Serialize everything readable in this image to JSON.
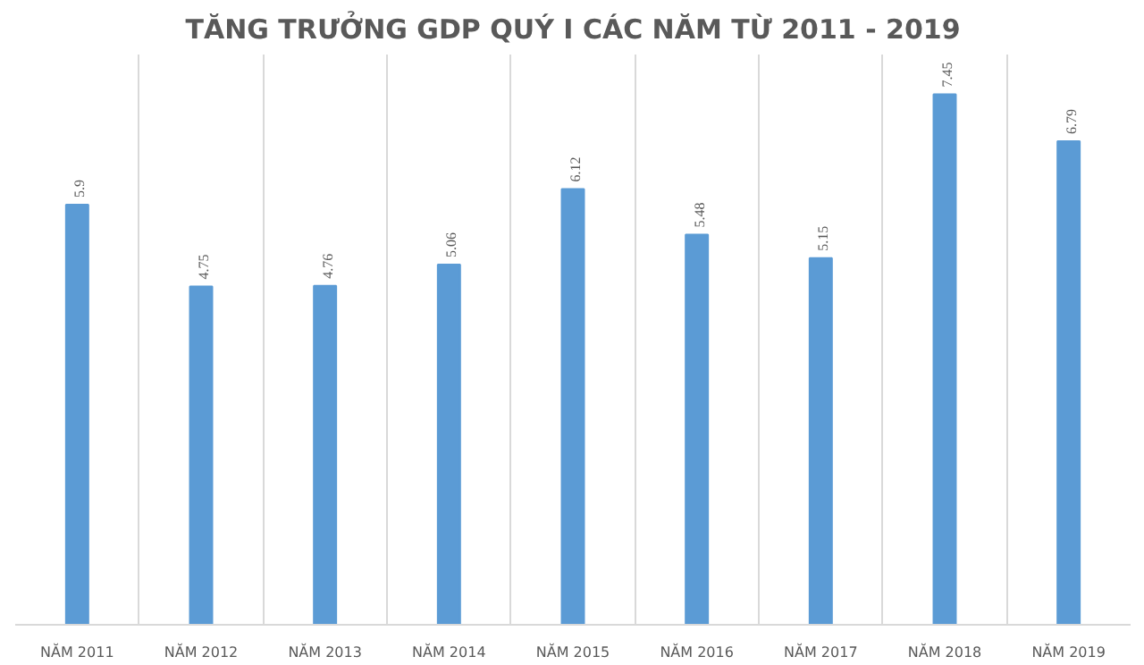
{
  "chart_data": {
    "type": "bar",
    "title": "TĂNG TRƯỞNG GDP QUÝ I CÁC NĂM TỪ 2011 - 2019",
    "categories": [
      "NĂM 2011",
      "NĂM 2012",
      "NĂM 2013",
      "NĂM 2014",
      "NĂM 2015",
      "NĂM 2016",
      "NĂM 2017",
      "NĂM 2018",
      "NĂM 2019"
    ],
    "values": [
      5.9,
      4.75,
      4.76,
      5.06,
      6.12,
      5.48,
      5.15,
      7.45,
      6.79
    ],
    "color": "#5b9bd5",
    "data_labels": true,
    "grid": "x"
  }
}
